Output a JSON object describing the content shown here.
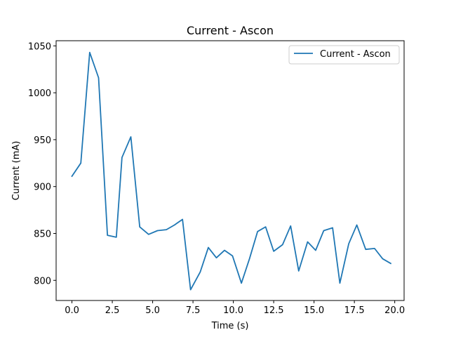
{
  "chart_data": {
    "type": "line",
    "title": "Current - Ascon",
    "xlabel": "Time (s)",
    "ylabel": "Current (mA)",
    "xlim": [
      -0.98,
      20.58
    ],
    "ylim": [
      778.5,
      1055.5
    ],
    "xticks": [
      0.0,
      2.5,
      5.0,
      7.5,
      10.0,
      12.5,
      15.0,
      17.5,
      20.0
    ],
    "xtick_labels": [
      "0.0",
      "2.5",
      "5.0",
      "7.5",
      "10.0",
      "12.5",
      "15.0",
      "17.5",
      "20.0"
    ],
    "yticks": [
      800,
      850,
      900,
      950,
      1000,
      1050
    ],
    "ytick_labels": [
      "800",
      "850",
      "900",
      "950",
      "1000",
      "1050"
    ],
    "grid": false,
    "legend": {
      "placement": "top-right"
    },
    "series": [
      {
        "name": "Current - Ascon",
        "color": "#1f77b4",
        "x": [
          0.0,
          0.55,
          1.1,
          1.65,
          2.2,
          2.75,
          3.1,
          3.65,
          4.2,
          4.75,
          5.3,
          5.85,
          6.35,
          6.85,
          7.35,
          7.95,
          8.45,
          8.95,
          9.45,
          9.95,
          10.5,
          11.0,
          11.5,
          12.0,
          12.5,
          13.05,
          13.55,
          14.05,
          14.6,
          15.1,
          15.6,
          16.15,
          16.6,
          17.15,
          17.65,
          18.2,
          18.75,
          19.25,
          19.75
        ],
        "y": [
          911,
          925,
          1043,
          1016,
          848,
          846,
          931,
          953,
          857,
          849,
          853,
          854,
          859,
          865,
          790,
          809,
          835,
          824,
          832,
          826,
          797,
          823,
          852,
          857,
          831,
          838,
          858,
          810,
          841,
          832,
          853,
          856,
          797,
          839,
          859,
          833,
          834,
          823,
          818
        ]
      }
    ]
  }
}
